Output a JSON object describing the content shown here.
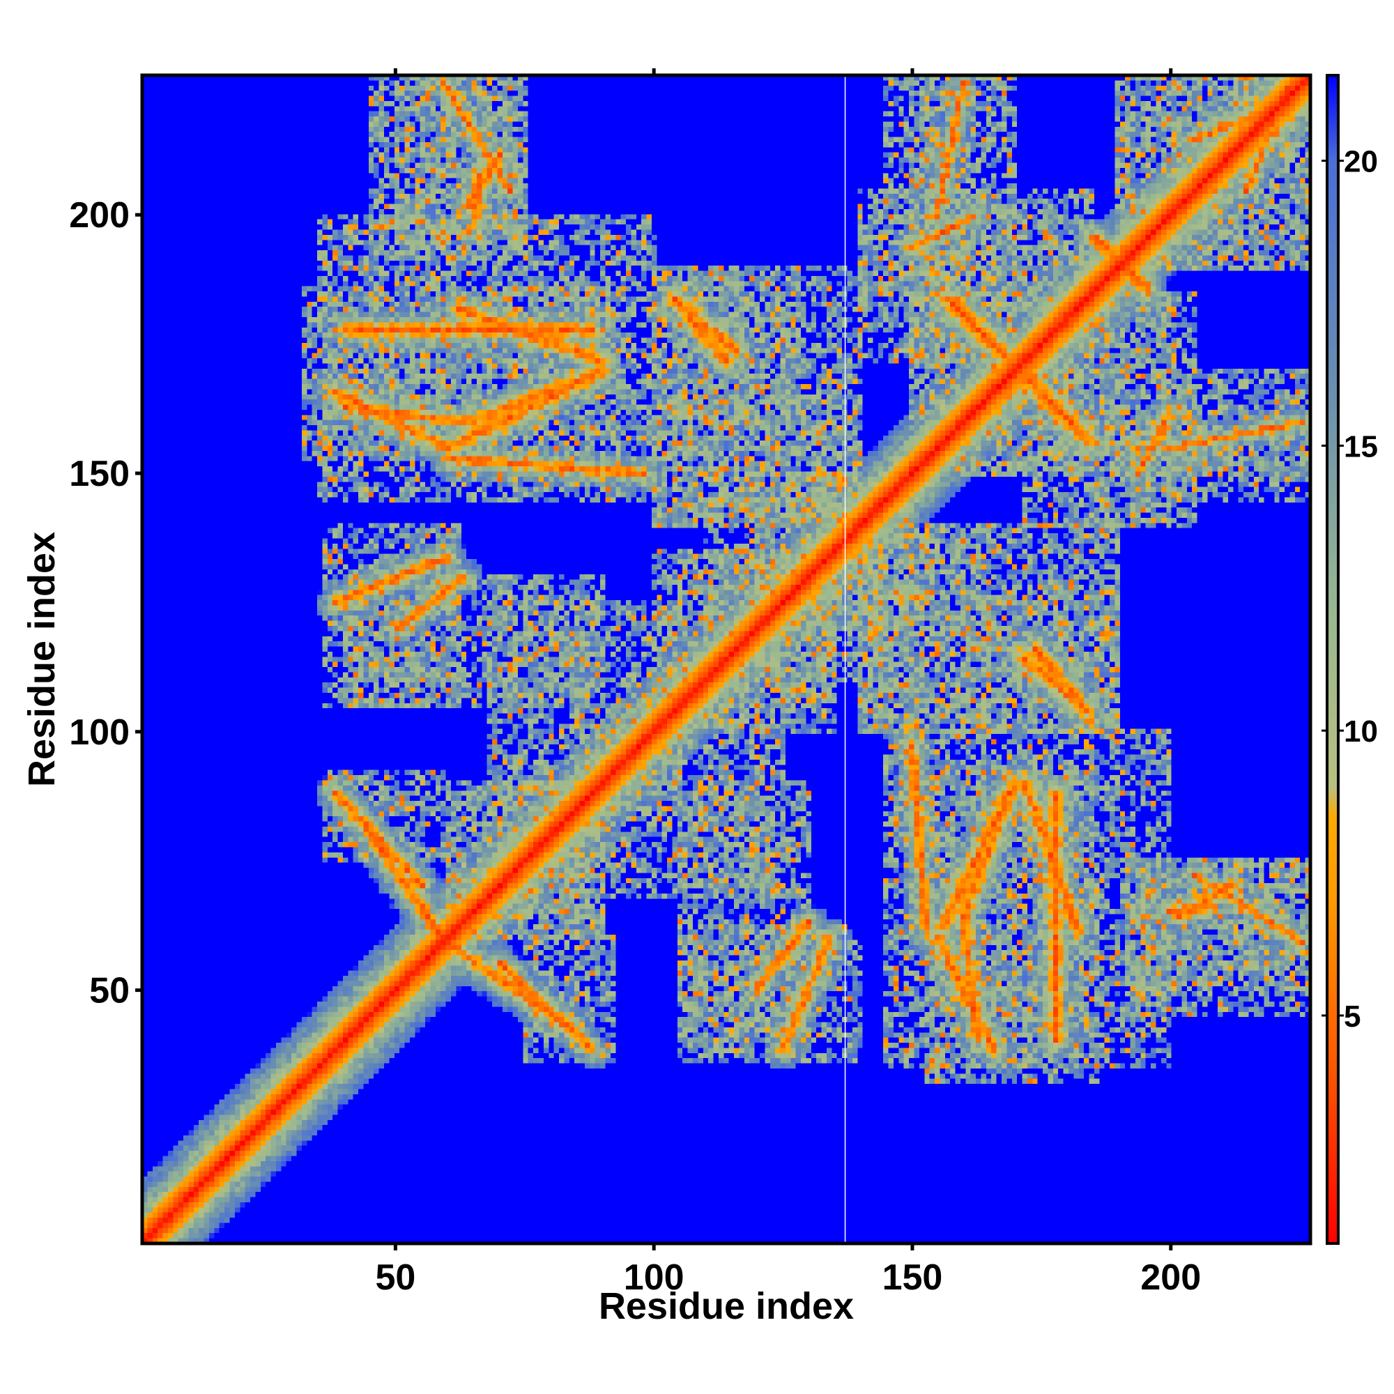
{
  "chart_data": {
    "type": "heatmap",
    "title": "",
    "xlabel": "Residue index",
    "ylabel": "Residue index",
    "xlim": [
      1,
      227
    ],
    "ylim": [
      1,
      227
    ],
    "x_ticks": [
      50,
      100,
      150,
      200
    ],
    "y_ticks": [
      50,
      100,
      150,
      200
    ],
    "x_tick_labels": [
      "50",
      "100",
      "150",
      "200"
    ],
    "y_tick_labels": [
      "50",
      "100",
      "150",
      "200"
    ],
    "grid": false,
    "colorbar": {
      "position": "right",
      "range": [
        1,
        21.5
      ],
      "ticks": [
        5,
        10,
        15,
        20
      ],
      "tick_labels": [
        "5",
        "10",
        "15",
        "20"
      ],
      "stops": [
        {
          "value": 1,
          "color": "#ff0000"
        },
        {
          "value": 4,
          "color": "#ff5500"
        },
        {
          "value": 7,
          "color": "#ff9900"
        },
        {
          "value": 8.5,
          "color": "#ffaa00"
        },
        {
          "value": 9,
          "color": "#b8c080"
        },
        {
          "value": 12,
          "color": "#9ab890"
        },
        {
          "value": 16,
          "color": "#6a8fb0"
        },
        {
          "value": 20,
          "color": "#4a6fd8"
        },
        {
          "value": 21.5,
          "color": "#0000ff"
        }
      ]
    },
    "background_value": 21.5,
    "diagonal_width": 3.0,
    "diagonal_halo": 6.0,
    "contact_segments": [
      {
        "a": [
          105,
          183
        ],
        "b": [
          116,
          174
        ],
        "w": 1.4,
        "h": 3.2
      },
      {
        "a": [
          158,
          183
        ],
        "b": [
          184,
          157
        ],
        "w": 1.5,
        "h": 3.5
      },
      {
        "a": [
          172,
          114
        ],
        "b": [
          184,
          104
        ],
        "w": 1.5,
        "h": 3.2
      },
      {
        "a": [
          160,
          64
        ],
        "b": [
          170,
          90
        ],
        "w": 1.3,
        "h": 3.0
      },
      {
        "a": [
          172,
          90
        ],
        "b": [
          182,
          62
        ],
        "w": 1.3,
        "h": 3.0
      },
      {
        "a": [
          38,
          166
        ],
        "b": [
          60,
          155
        ],
        "w": 1.3,
        "h": 3.3
      },
      {
        "a": [
          40,
          178
        ],
        "b": [
          88,
          178
        ],
        "w": 1.1,
        "h": 3.2
      },
      {
        "a": [
          62,
          156
        ],
        "b": [
          88,
          169
        ],
        "w": 1.4,
        "h": 3.5
      },
      {
        "a": [
          58,
          60
        ],
        "b": [
          83,
          43
        ],
        "w": 1.2,
        "h": 3.5
      },
      {
        "a": [
          38,
          88
        ],
        "b": [
          55,
          70
        ],
        "w": 1.0,
        "h": 3.0
      },
      {
        "a": [
          38,
          125
        ],
        "b": [
          60,
          134
        ],
        "w": 1.0,
        "h": 3.0
      },
      {
        "a": [
          64,
          202
        ],
        "b": [
          70,
          212
        ],
        "w": 1.1,
        "h": 3.0
      },
      {
        "a": [
          200,
          65
        ],
        "b": [
          208,
          66
        ],
        "w": 1.0,
        "h": 3.0
      },
      {
        "a": [
          185,
          196
        ],
        "b": [
          196,
          186
        ],
        "w": 1.0,
        "h": 3.0
      },
      {
        "a": [
          132,
          133
        ],
        "b": [
          142,
          142
        ],
        "w": 1.0,
        "h": 3.0
      },
      {
        "a": [
          150,
          194
        ],
        "b": [
          162,
          200
        ],
        "w": 0.8,
        "h": 3.0
      },
      {
        "a": [
          150,
          98
        ],
        "b": [
          153,
          60
        ],
        "w": 0.9,
        "h": 3.0
      },
      {
        "a": [
          160,
          64
        ],
        "b": [
          163,
          40
        ],
        "w": 0.9,
        "h": 3.0
      },
      {
        "a": [
          178,
          70
        ],
        "b": [
          178,
          40
        ],
        "w": 0.7,
        "h": 2.8
      },
      {
        "a": [
          120,
          50
        ],
        "b": [
          130,
          63
        ],
        "w": 0.9,
        "h": 2.8
      },
      {
        "a": [
          205,
          215
        ],
        "b": [
          225,
          223
        ],
        "w": 0.7,
        "h": 3.0
      },
      {
        "a": [
          205,
          72
        ],
        "b": [
          226,
          59
        ],
        "w": 0.7,
        "h": 2.8
      },
      {
        "a": [
          200,
          155
        ],
        "b": [
          226,
          160
        ],
        "w": 0.6,
        "h": 2.6
      }
    ],
    "noise_regions": [
      {
        "x": [
          50,
          75
        ],
        "y": [
          195,
          227
        ]
      },
      {
        "x": [
          32,
          93
        ],
        "y": [
          153,
          186
        ]
      },
      {
        "x": [
          100,
          128
        ],
        "y": [
          160,
          190
        ]
      },
      {
        "x": [
          150,
          185
        ],
        "y": [
          150,
          200
        ]
      },
      {
        "x": [
          140,
          185
        ],
        "y": [
          185,
          205
        ]
      },
      {
        "x": [
          190,
          227
        ],
        "y": [
          190,
          227
        ]
      },
      {
        "x": [
          150,
          170
        ],
        "y": [
          200,
          227
        ]
      },
      {
        "x": [
          172,
          200
        ],
        "y": [
          140,
          160
        ]
      },
      {
        "x": [
          200,
          227
        ],
        "y": [
          145,
          162
        ]
      },
      {
        "x": [
          36,
          62
        ],
        "y": [
          105,
          140
        ]
      },
      {
        "x": [
          68,
          105
        ],
        "y": [
          85,
          125
        ]
      },
      {
        "x": [
          105,
          135
        ],
        "y": [
          100,
          135
        ]
      },
      {
        "x": [
          140,
          190
        ],
        "y": [
          100,
          140
        ]
      },
      {
        "x": [
          36,
          60
        ],
        "y": [
          75,
          92
        ]
      },
      {
        "x": [
          60,
          90
        ],
        "y": [
          60,
          90
        ]
      },
      {
        "x": [
          105,
          130
        ],
        "y": [
          40,
          90
        ]
      },
      {
        "x": [
          145,
          200
        ],
        "y": [
          35,
          100
        ]
      },
      {
        "x": [
          192,
          227
        ],
        "y": [
          45,
          75
        ]
      },
      {
        "x": [
          120,
          145
        ],
        "y": [
          110,
          150
        ]
      },
      {
        "x": [
          100,
          140
        ],
        "y": [
          140,
          165
        ]
      }
    ],
    "white_line_x": 137
  }
}
